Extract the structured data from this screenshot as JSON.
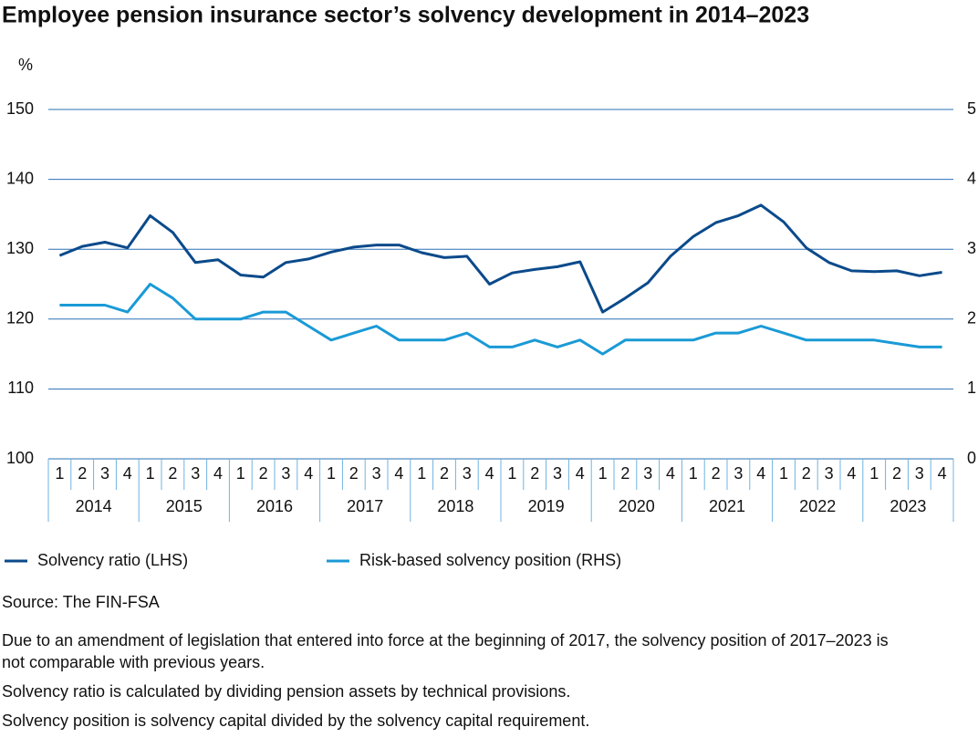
{
  "chart_data": {
    "type": "line",
    "title": "Employee pension insurance sector’s solvency development in 2014–2023",
    "y_label": "%",
    "categories": [
      "1",
      "2",
      "3",
      "4",
      "1",
      "2",
      "3",
      "4",
      "1",
      "2",
      "3",
      "4",
      "1",
      "2",
      "3",
      "4",
      "1",
      "2",
      "3",
      "4",
      "1",
      "2",
      "3",
      "4",
      "1",
      "2",
      "3",
      "4",
      "1",
      "2",
      "3",
      "4",
      "1",
      "2",
      "3",
      "4",
      "1",
      "2",
      "3",
      "4"
    ],
    "groups": [
      "2014",
      "2015",
      "2016",
      "2017",
      "2018",
      "2019",
      "2020",
      "2021",
      "2022",
      "2023"
    ],
    "ylim": [
      100,
      150
    ],
    "yticks": [
      100,
      110,
      120,
      130,
      140,
      150
    ],
    "y2lim": [
      0,
      5
    ],
    "y2ticks": [
      0,
      1,
      2,
      3,
      4,
      5
    ],
    "grid": true,
    "series": [
      {
        "name": "Solvency ratio (LHS)",
        "color": "#0b4a8b",
        "axis": "y",
        "values": [
          129.1,
          130.4,
          131.0,
          130.2,
          134.8,
          132.4,
          128.1,
          128.5,
          126.3,
          126.0,
          128.1,
          128.6,
          129.6,
          130.3,
          130.6,
          130.6,
          129.5,
          128.8,
          129.0,
          125.0,
          126.6,
          127.1,
          127.5,
          128.2,
          121.0,
          123.0,
          125.2,
          129.0,
          131.8,
          133.8,
          134.8,
          136.3,
          133.9,
          130.2,
          128.1,
          126.9,
          126.8,
          126.9,
          126.2,
          126.7
        ]
      },
      {
        "name": "Risk-based solvency position (RHS)",
        "color": "#1a9ad6",
        "axis": "y2",
        "values": [
          2.2,
          2.2,
          2.2,
          2.1,
          2.5,
          2.3,
          2.0,
          2.0,
          2.0,
          2.1,
          2.1,
          1.9,
          1.7,
          1.8,
          1.9,
          1.7,
          1.7,
          1.7,
          1.8,
          1.6,
          1.6,
          1.7,
          1.6,
          1.7,
          1.5,
          1.7,
          1.7,
          1.7,
          1.7,
          1.8,
          1.8,
          1.9,
          1.8,
          1.7,
          1.7,
          1.7,
          1.7,
          1.65,
          1.6,
          1.6
        ]
      }
    ],
    "source": "Source: The FIN-FSA",
    "notes": [
      "Due to an amendment of legislation that entered into force at the beginning of 2017, the solvency position of 2017–2023 is not comparable with previous years.",
      "Solvency ratio is calculated by dividing pension assets by technical provisions.",
      "Solvency position is solvency capital divided by the solvency capital requirement."
    ]
  }
}
